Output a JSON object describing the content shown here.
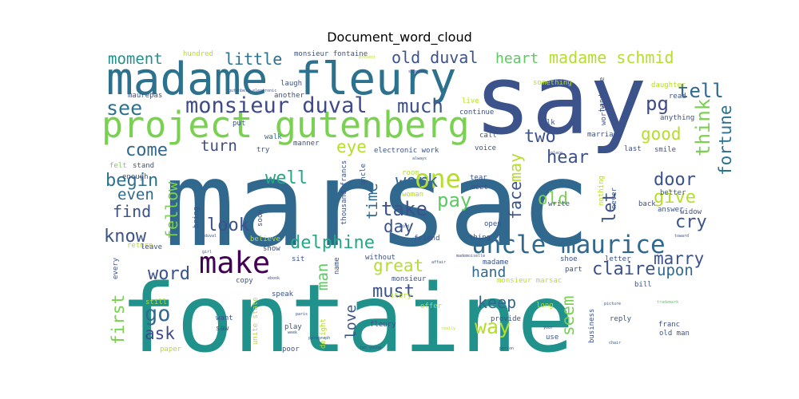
{
  "chart_data": {
    "type": "word_cloud",
    "title": "Document_word_cloud",
    "words": [
      {
        "text": "fontaine",
        "weight": 1.0,
        "color": "#21918c"
      },
      {
        "text": "marsac",
        "weight": 0.95,
        "color": "#31688e"
      },
      {
        "text": "say",
        "weight": 0.78,
        "color": "#3b528b"
      },
      {
        "text": "madame fleury",
        "weight": 0.46,
        "color": "#2c728e"
      },
      {
        "text": "project gutenberg",
        "weight": 0.4,
        "color": "#7ad151"
      },
      {
        "text": "uncle maurice",
        "weight": 0.3,
        "color": "#31688e"
      },
      {
        "text": "make",
        "weight": 0.3,
        "color": "#440154"
      },
      {
        "text": "one",
        "weight": 0.28,
        "color": "#b5de2b"
      },
      {
        "text": "monsieur duval",
        "weight": 0.24,
        "color": "#3e4a89"
      },
      {
        "text": "madame schmid",
        "weight": 0.18,
        "color": "#b5de2b"
      },
      {
        "text": "old duval",
        "weight": 0.18,
        "color": "#3b528b"
      },
      {
        "text": "delphine",
        "weight": 0.18,
        "color": "#22a884"
      },
      {
        "text": "think",
        "weight": 0.18,
        "color": "#7ad151"
      },
      {
        "text": "little",
        "weight": 0.17,
        "color": "#2c728e"
      },
      {
        "text": "moment",
        "weight": 0.16,
        "color": "#21918c"
      },
      {
        "text": "heart",
        "weight": 0.16,
        "color": "#5ec962"
      },
      {
        "text": "see",
        "weight": 0.18,
        "color": "#2c728e"
      },
      {
        "text": "much",
        "weight": 0.17,
        "color": "#3b528b"
      },
      {
        "text": "pg",
        "weight": 0.17,
        "color": "#3e4a89"
      },
      {
        "text": "tell",
        "weight": 0.16,
        "color": "#31688e"
      },
      {
        "text": "fortune",
        "weight": 0.15,
        "color": "#2c728e"
      },
      {
        "text": "good",
        "weight": 0.16,
        "color": "#b5de2b"
      },
      {
        "text": "come",
        "weight": 0.16,
        "color": "#31688e"
      },
      {
        "text": "two",
        "weight": 0.16,
        "color": "#3b528b"
      },
      {
        "text": "eye",
        "weight": 0.16,
        "color": "#b5de2b"
      },
      {
        "text": "hear",
        "weight": 0.16,
        "color": "#3b528b"
      },
      {
        "text": "turn",
        "weight": 0.16,
        "color": "#3e4a89"
      },
      {
        "text": "may",
        "weight": 0.15,
        "color": "#b5de2b"
      },
      {
        "text": "face",
        "weight": 0.15,
        "color": "#3b528b"
      },
      {
        "text": "well",
        "weight": 0.17,
        "color": "#22a884"
      },
      {
        "text": "work",
        "weight": 0.17,
        "color": "#31688e"
      },
      {
        "text": "begin",
        "weight": 0.17,
        "color": "#2c728e"
      },
      {
        "text": "door",
        "weight": 0.17,
        "color": "#3b528b"
      },
      {
        "text": "give",
        "weight": 0.17,
        "color": "#b5de2b"
      },
      {
        "text": "even",
        "weight": 0.15,
        "color": "#31688e"
      },
      {
        "text": "fellow",
        "weight": 0.15,
        "color": "#7ad151"
      },
      {
        "text": "pay",
        "weight": 0.17,
        "color": "#5ec962"
      },
      {
        "text": "time",
        "weight": 0.15,
        "color": "#31688e"
      },
      {
        "text": "old",
        "weight": 0.17,
        "color": "#7ad151"
      },
      {
        "text": "find",
        "weight": 0.16,
        "color": "#3b528b"
      },
      {
        "text": "take",
        "weight": 0.18,
        "color": "#3b528b"
      },
      {
        "text": "let",
        "weight": 0.16,
        "color": "#3b528b"
      },
      {
        "text": "cry",
        "weight": 0.17,
        "color": "#3b528b"
      },
      {
        "text": "day",
        "weight": 0.17,
        "color": "#3b528b"
      },
      {
        "text": "know",
        "weight": 0.17,
        "color": "#3b528b"
      },
      {
        "text": "look",
        "weight": 0.17,
        "color": "#3b528b"
      },
      {
        "text": "marry",
        "weight": 0.17,
        "color": "#3b528b"
      },
      {
        "text": "claire",
        "weight": 0.17,
        "color": "#3b528b"
      },
      {
        "text": "upon",
        "weight": 0.16,
        "color": "#31688e"
      },
      {
        "text": "great",
        "weight": 0.17,
        "color": "#b5de2b"
      },
      {
        "text": "man",
        "weight": 0.15,
        "color": "#5ec962"
      },
      {
        "text": "hand",
        "weight": 0.16,
        "color": "#31688e"
      },
      {
        "text": "word",
        "weight": 0.17,
        "color": "#3b528b"
      },
      {
        "text": "first",
        "weight": 0.16,
        "color": "#7ad151"
      },
      {
        "text": "go",
        "weight": 0.18,
        "color": "#31688e"
      },
      {
        "text": "must",
        "weight": 0.17,
        "color": "#3b528b"
      },
      {
        "text": "keep",
        "weight": 0.16,
        "color": "#31688e"
      },
      {
        "text": "seem",
        "weight": 0.16,
        "color": "#7ad151"
      },
      {
        "text": "way",
        "weight": 0.17,
        "color": "#b5de2b"
      },
      {
        "text": "love",
        "weight": 0.16,
        "color": "#3b528b"
      },
      {
        "text": "ask",
        "weight": 0.17,
        "color": "#3e4a89"
      },
      {
        "text": "monsieur fontaine",
        "weight": 0.05,
        "color": "#3b528b"
      },
      {
        "text": "hundred",
        "weight": 0.05,
        "color": "#b5de2b"
      },
      {
        "text": "laugh",
        "weight": 0.05,
        "color": "#3b528b"
      },
      {
        "text": "maurepas",
        "weight": 0.05,
        "color": "#3b528b"
      },
      {
        "text": "another",
        "weight": 0.05,
        "color": "#3b528b"
      },
      {
        "text": "put",
        "weight": 0.05,
        "color": "#3b528b"
      },
      {
        "text": "felt",
        "weight": 0.05,
        "color": "#7ad151"
      },
      {
        "text": "stand",
        "weight": 0.05,
        "color": "#3b528b"
      },
      {
        "text": "walk",
        "weight": 0.05,
        "color": "#31688e"
      },
      {
        "text": "enough",
        "weight": 0.05,
        "color": "#3b528b"
      },
      {
        "text": "try",
        "weight": 0.05,
        "color": "#3b528b"
      },
      {
        "text": "manner",
        "weight": 0.05,
        "color": "#3b528b"
      },
      {
        "text": "electronic work",
        "weight": 0.06,
        "color": "#3b528b"
      },
      {
        "text": "something",
        "weight": 0.05,
        "color": "#b5de2b"
      },
      {
        "text": "handsome",
        "weight": 0.05,
        "color": "#3b528b"
      },
      {
        "text": "daughter",
        "weight": 0.05,
        "color": "#b5de2b"
      },
      {
        "text": "read",
        "weight": 0.05,
        "color": "#3b528b"
      },
      {
        "text": "anything",
        "weight": 0.05,
        "color": "#3b528b"
      },
      {
        "text": "live",
        "weight": 0.05,
        "color": "#b5de2b"
      },
      {
        "text": "continue",
        "weight": 0.05,
        "color": "#3b528b"
      },
      {
        "text": "world",
        "weight": 0.05,
        "color": "#3b528b"
      },
      {
        "text": "call",
        "weight": 0.05,
        "color": "#3b528b"
      },
      {
        "text": "talk",
        "weight": 0.05,
        "color": "#3b528b"
      },
      {
        "text": "marriage",
        "weight": 0.05,
        "color": "#3b528b"
      },
      {
        "text": "voice",
        "weight": 0.05,
        "color": "#3b528b"
      },
      {
        "text": "smile",
        "weight": 0.05,
        "color": "#3b528b"
      },
      {
        "text": "last",
        "weight": 0.05,
        "color": "#3b528b"
      },
      {
        "text": "thousand francs",
        "weight": 0.05,
        "color": "#3b528b"
      },
      {
        "text": "uncle",
        "weight": 0.04,
        "color": "#3b528b"
      },
      {
        "text": "room",
        "weight": 0.05,
        "color": "#b5de2b"
      },
      {
        "text": "woman",
        "weight": 0.05,
        "color": "#b5de2b"
      },
      {
        "text": "tear",
        "weight": 0.05,
        "color": "#3b528b"
      },
      {
        "text": "meet",
        "weight": 0.05,
        "color": "#3b528b"
      },
      {
        "text": "nothing",
        "weight": 0.04,
        "color": "#b5de2b"
      },
      {
        "text": "never",
        "weight": 0.04,
        "color": "#3b528b"
      },
      {
        "text": "back",
        "weight": 0.05,
        "color": "#3b528b"
      },
      {
        "text": "better",
        "weight": 0.05,
        "color": "#3b528b"
      },
      {
        "text": "answer",
        "weight": 0.05,
        "color": "#3b528b"
      },
      {
        "text": "write",
        "weight": 0.05,
        "color": "#3b528b"
      },
      {
        "text": "widow",
        "weight": 0.04,
        "color": "#3b528b"
      },
      {
        "text": "bring",
        "weight": 0.05,
        "color": "#3b528b"
      },
      {
        "text": "soon",
        "weight": 0.05,
        "color": "#3b528b"
      },
      {
        "text": "open",
        "weight": 0.05,
        "color": "#3b528b"
      },
      {
        "text": "return",
        "weight": 0.05,
        "color": "#b5de2b"
      },
      {
        "text": "believe",
        "weight": 0.05,
        "color": "#b5de2b"
      },
      {
        "text": "friend",
        "weight": 0.05,
        "color": "#3b528b"
      },
      {
        "text": "thing",
        "weight": 0.05,
        "color": "#3b528b"
      },
      {
        "text": "leave",
        "weight": 0.05,
        "color": "#3b528b"
      },
      {
        "text": "show",
        "weight": 0.05,
        "color": "#3b528b"
      },
      {
        "text": "sit",
        "weight": 0.05,
        "color": "#3b528b"
      },
      {
        "text": "name",
        "weight": 0.04,
        "color": "#3b528b"
      },
      {
        "text": "without",
        "weight": 0.05,
        "color": "#3b528b"
      },
      {
        "text": "madame",
        "weight": 0.05,
        "color": "#3b528b"
      },
      {
        "text": "shoe",
        "weight": 0.05,
        "color": "#3b528b"
      },
      {
        "text": "letter",
        "weight": 0.05,
        "color": "#3b528b"
      },
      {
        "text": "part",
        "weight": 0.05,
        "color": "#3b528b"
      },
      {
        "text": "monsieur marsac",
        "weight": 0.05,
        "color": "#b5de2b"
      },
      {
        "text": "bill",
        "weight": 0.05,
        "color": "#3b528b"
      },
      {
        "text": "every",
        "weight": 0.04,
        "color": "#3b528b"
      },
      {
        "text": "copy",
        "weight": 0.05,
        "color": "#3b528b"
      },
      {
        "text": "speak",
        "weight": 0.05,
        "color": "#3b528b"
      },
      {
        "text": "monsieur",
        "weight": 0.05,
        "color": "#3b528b"
      },
      {
        "text": "still",
        "weight": 0.05,
        "color": "#b5de2b"
      },
      {
        "text": "want",
        "weight": 0.05,
        "color": "#3b528b"
      },
      {
        "text": "story",
        "weight": 0.05,
        "color": "#b5de2b"
      },
      {
        "text": "offer",
        "weight": 0.05,
        "color": "#b5de2b"
      },
      {
        "text": "provide",
        "weight": 0.05,
        "color": "#3b528b"
      },
      {
        "text": "long",
        "weight": 0.05,
        "color": "#b5de2b"
      },
      {
        "text": "reply",
        "weight": 0.05,
        "color": "#3b528b"
      },
      {
        "text": "business",
        "weight": 0.04,
        "color": "#3b528b"
      },
      {
        "text": "franc",
        "weight": 0.05,
        "color": "#3b528b"
      },
      {
        "text": "old man",
        "weight": 0.05,
        "color": "#3b528b"
      },
      {
        "text": "saw",
        "weight": 0.05,
        "color": "#3b528b"
      },
      {
        "text": "play",
        "weight": 0.05,
        "color": "#3b528b"
      },
      {
        "text": "fleury",
        "weight": 0.05,
        "color": "#3b528b"
      },
      {
        "text": "use",
        "weight": 0.05,
        "color": "#3b528b"
      },
      {
        "text": "unite state",
        "weight": 0.05,
        "color": "#b5de2b"
      },
      {
        "text": "delight",
        "weight": 0.04,
        "color": "#b5de2b"
      },
      {
        "text": "paper",
        "weight": 0.05,
        "color": "#b5de2b"
      },
      {
        "text": "poor",
        "weight": 0.05,
        "color": "#3b528b"
      },
      {
        "text": "mademoiselle",
        "weight": 0.02,
        "color": "#3b528b"
      },
      {
        "text": "gutenberg electronic",
        "weight": 0.02,
        "color": "#3b528b"
      },
      {
        "text": "trademark",
        "weight": 0.02,
        "color": "#5ec962"
      },
      {
        "text": "picture",
        "weight": 0.02,
        "color": "#3b528b"
      },
      {
        "text": "paragraph",
        "weight": 0.02,
        "color": "#3b528b"
      },
      {
        "text": "two young",
        "weight": 0.02,
        "color": "#3b528b"
      },
      {
        "text": "really",
        "weight": 0.02,
        "color": "#b5de2b"
      },
      {
        "text": "person",
        "weight": 0.02,
        "color": "#3b528b"
      },
      {
        "text": "chair",
        "weight": 0.02,
        "color": "#3b528b"
      },
      {
        "text": "present",
        "weight": 0.02,
        "color": "#b5de2b"
      },
      {
        "text": "suppose",
        "weight": 0.02,
        "color": "#3b528b"
      },
      {
        "text": "access",
        "weight": 0.02,
        "color": "#3b528b"
      },
      {
        "text": "always",
        "weight": 0.02,
        "color": "#3b528b"
      },
      {
        "text": "place",
        "weight": 0.02,
        "color": "#3b528b"
      },
      {
        "text": "girl",
        "weight": 0.02,
        "color": "#3b528b"
      },
      {
        "text": "ebook",
        "weight": 0.02,
        "color": "#3b528b"
      },
      {
        "text": "mind",
        "weight": 0.02,
        "color": "#3b528b"
      },
      {
        "text": "affair",
        "weight": 0.02,
        "color": "#3b528b"
      },
      {
        "text": "paris",
        "weight": 0.02,
        "color": "#3b528b"
      },
      {
        "text": "week",
        "weight": 0.02,
        "color": "#3b528b"
      },
      {
        "text": "your",
        "weight": 0.02,
        "color": "#3b528b"
      },
      {
        "text": "toward",
        "weight": 0.02,
        "color": "#3b528b"
      },
      {
        "text": "duval",
        "weight": 0.02,
        "color": "#3b528b"
      }
    ]
  }
}
